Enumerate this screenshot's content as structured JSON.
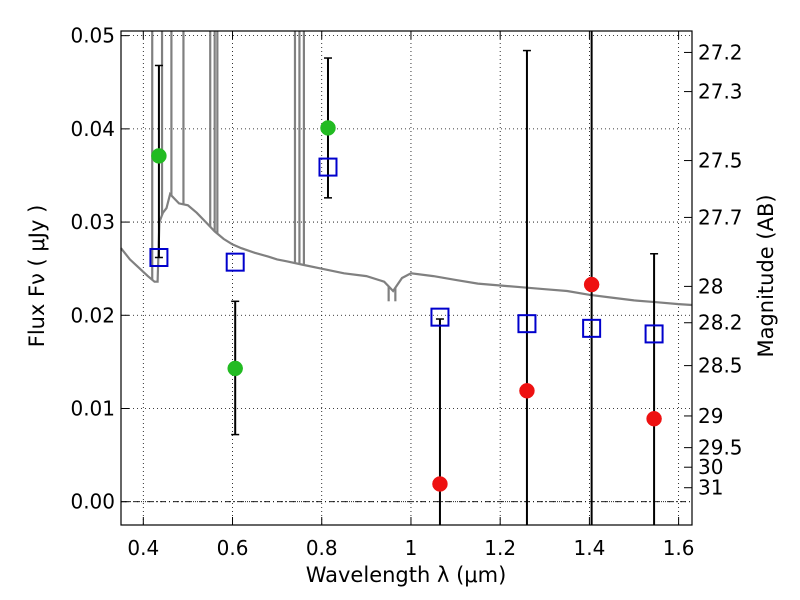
{
  "chart_data": {
    "type": "scatter",
    "xlabel": "Wavelength  λ (μm)",
    "ylabel": "Flux  Fν ( μJy )",
    "y2label": "Magnitude (AB)",
    "xlim": [
      0.35,
      1.63
    ],
    "ylim": [
      -0.0025,
      0.0505
    ],
    "x_ticks": [
      0.4,
      0.6,
      0.8,
      1.0,
      1.2,
      1.4,
      1.6
    ],
    "x_tick_labels": [
      "0.4",
      "0.6",
      "0.8",
      "1",
      "1.2",
      "1.4",
      "1.6"
    ],
    "y_ticks": [
      0.0,
      0.01,
      0.02,
      0.03,
      0.04,
      0.05
    ],
    "y_tick_labels": [
      "0.00",
      "0.01",
      "0.02",
      "0.03",
      "0.04",
      "0.05"
    ],
    "y2_ticks": [
      {
        "label": "27.2",
        "flux": 0.0482
      },
      {
        "label": "27.3",
        "flux": 0.044
      },
      {
        "label": "27.5",
        "flux": 0.0366
      },
      {
        "label": "27.7",
        "flux": 0.0305
      },
      {
        "label": "28",
        "flux": 0.0231
      },
      {
        "label": "28.2",
        "flux": 0.0192
      },
      {
        "label": "28.5",
        "flux": 0.0146
      },
      {
        "label": "29",
        "flux": 0.0092
      },
      {
        "label": "29.5",
        "flux": 0.0058
      },
      {
        "label": "30",
        "flux": 0.0037
      },
      {
        "label": "31",
        "flux": 0.0015
      }
    ],
    "grid": true,
    "zero_line": true,
    "colors": {
      "optical": "#22bb22",
      "nir": "#ee1111",
      "model": "#0000cc",
      "sed": "#808080",
      "errorbar": "#000000"
    },
    "series": [
      {
        "marker": "circle",
        "color": "#22bb22",
        "points": [
          {
            "x": 0.435,
            "y": 0.0371,
            "err_lo": 0.0262,
            "err_hi": 0.0468
          },
          {
            "x": 0.606,
            "y": 0.0143,
            "err_lo": 0.0072,
            "err_hi": 0.0215
          },
          {
            "x": 0.814,
            "y": 0.0401,
            "err_lo": 0.0326,
            "err_hi": 0.0476
          }
        ]
      },
      {
        "marker": "circle",
        "color": "#ee1111",
        "points": [
          {
            "x": 1.065,
            "y": 0.0019,
            "err_lo": -0.0028,
            "err_hi": 0.0196
          },
          {
            "x": 1.26,
            "y": 0.0119,
            "err_lo": -0.0028,
            "err_hi": 0.0484
          },
          {
            "x": 1.405,
            "y": 0.0233,
            "err_lo": -0.0028,
            "err_hi": 0.0505
          },
          {
            "x": 1.545,
            "y": 0.0089,
            "err_lo": -0.0028,
            "err_hi": 0.0266
          }
        ]
      },
      {
        "marker": "open-square",
        "color": "#0000cc",
        "points": [
          {
            "x": 0.435,
            "y": 0.0262
          },
          {
            "x": 0.606,
            "y": 0.0257
          },
          {
            "x": 0.814,
            "y": 0.0359
          },
          {
            "x": 1.065,
            "y": 0.0198
          },
          {
            "x": 1.26,
            "y": 0.0191
          },
          {
            "x": 1.405,
            "y": 0.0186
          },
          {
            "x": 1.545,
            "y": 0.018
          }
        ]
      },
      {
        "marker": "line",
        "color": "#808080",
        "points": [
          {
            "x": 0.35,
            "y": 0.0272
          },
          {
            "x": 0.37,
            "y": 0.026
          },
          {
            "x": 0.39,
            "y": 0.0251
          },
          {
            "x": 0.41,
            "y": 0.0242
          },
          {
            "x": 0.425,
            "y": 0.0236
          },
          {
            "x": 0.432,
            "y": 0.0236
          },
          {
            "x": 0.436,
            "y": 0.03
          },
          {
            "x": 0.444,
            "y": 0.031
          },
          {
            "x": 0.452,
            "y": 0.0315
          },
          {
            "x": 0.46,
            "y": 0.033
          },
          {
            "x": 0.47,
            "y": 0.0325
          },
          {
            "x": 0.48,
            "y": 0.032
          },
          {
            "x": 0.5,
            "y": 0.0318
          },
          {
            "x": 0.52,
            "y": 0.031
          },
          {
            "x": 0.54,
            "y": 0.03
          },
          {
            "x": 0.56,
            "y": 0.029
          },
          {
            "x": 0.58,
            "y": 0.0282
          },
          {
            "x": 0.6,
            "y": 0.0276
          },
          {
            "x": 0.62,
            "y": 0.0272
          },
          {
            "x": 0.65,
            "y": 0.0267
          },
          {
            "x": 0.68,
            "y": 0.0263
          },
          {
            "x": 0.7,
            "y": 0.026
          },
          {
            "x": 0.72,
            "y": 0.0258
          },
          {
            "x": 0.76,
            "y": 0.0254
          },
          {
            "x": 0.8,
            "y": 0.025
          },
          {
            "x": 0.85,
            "y": 0.0245
          },
          {
            "x": 0.9,
            "y": 0.0242
          },
          {
            "x": 0.94,
            "y": 0.0236
          },
          {
            "x": 0.96,
            "y": 0.0226
          },
          {
            "x": 0.98,
            "y": 0.024
          },
          {
            "x": 1.0,
            "y": 0.0245
          },
          {
            "x": 1.05,
            "y": 0.0242
          },
          {
            "x": 1.1,
            "y": 0.0238
          },
          {
            "x": 1.15,
            "y": 0.0234
          },
          {
            "x": 1.2,
            "y": 0.0232
          },
          {
            "x": 1.25,
            "y": 0.023
          },
          {
            "x": 1.3,
            "y": 0.0228
          },
          {
            "x": 1.35,
            "y": 0.0226
          },
          {
            "x": 1.4,
            "y": 0.0222
          },
          {
            "x": 1.45,
            "y": 0.0219
          },
          {
            "x": 1.5,
            "y": 0.0216
          },
          {
            "x": 1.55,
            "y": 0.0214
          },
          {
            "x": 1.6,
            "y": 0.0212
          },
          {
            "x": 1.63,
            "y": 0.0211
          }
        ],
        "spikes": [
          {
            "x": 0.42,
            "top": 0.0505
          },
          {
            "x": 0.442,
            "top": 0.0505
          },
          {
            "x": 0.463,
            "top": 0.0505
          },
          {
            "x": 0.49,
            "top": 0.0505
          },
          {
            "x": 0.55,
            "top": 0.0505
          },
          {
            "x": 0.56,
            "top": 0.0505
          },
          {
            "x": 0.566,
            "top": 0.0505
          },
          {
            "x": 0.74,
            "top": 0.0505
          },
          {
            "x": 0.75,
            "top": 0.0505
          },
          {
            "x": 0.76,
            "top": 0.0505
          },
          {
            "x": 0.95,
            "top": 0.0215
          },
          {
            "x": 0.965,
            "top": 0.0215
          }
        ]
      }
    ]
  }
}
